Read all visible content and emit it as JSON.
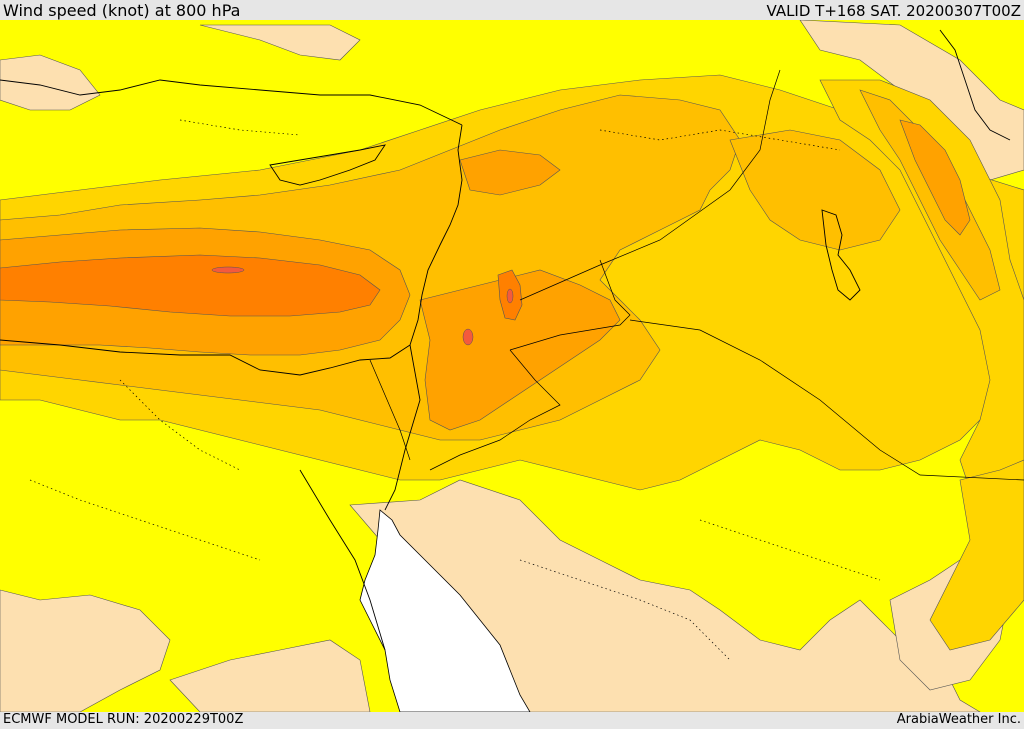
{
  "header": {
    "title": "Wind speed (knot) at 800 hPa",
    "valid": "VALID T+168 SAT. 20200307T00Z"
  },
  "footer": {
    "model_run": "ECMWF MODEL RUN: 20200229T00Z",
    "credit": "ArabiaWeather Inc."
  },
  "colors": {
    "land_light": "#fde0b0",
    "yellow": "#ffff00",
    "amber": "#ffd500",
    "orange_light": "#ffbf00",
    "orange": "#ffa200",
    "orange_dark": "#ff8000",
    "red_core": "#f45a3c",
    "sea": "#ffffff"
  }
}
